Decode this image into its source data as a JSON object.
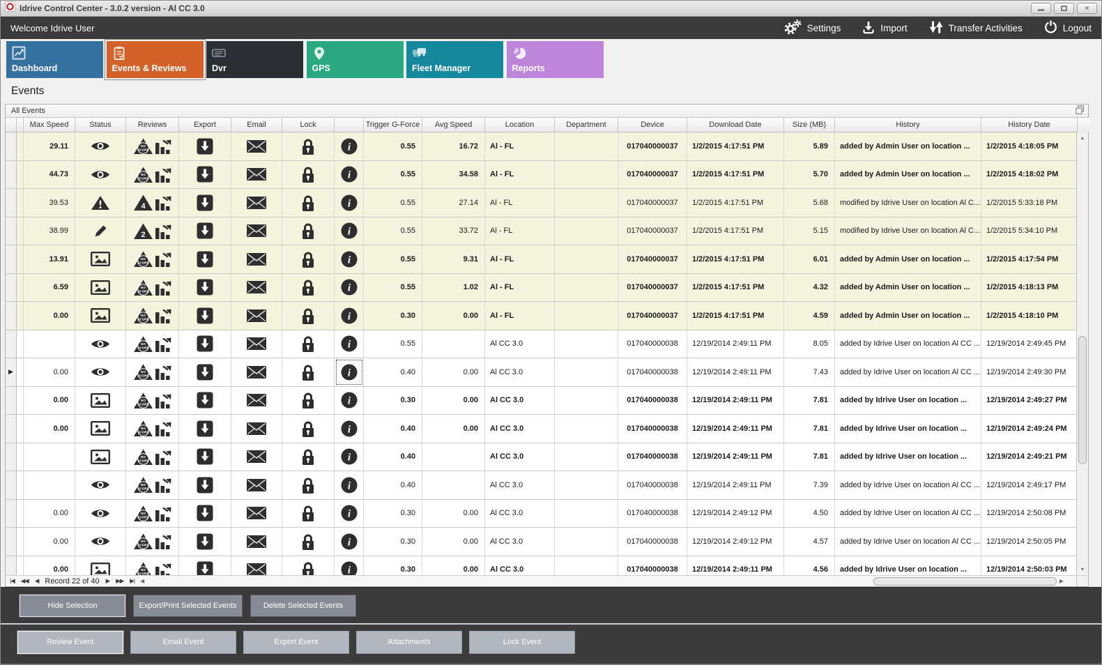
{
  "window": {
    "title": "Idrive Control Center - 3.0.2 version - Al CC 3.0"
  },
  "toolbar": {
    "welcome": "Welcome Idrive User",
    "actions": [
      {
        "label": "Settings",
        "icon": "gears-icon"
      },
      {
        "label": "Import",
        "icon": "import-icon"
      },
      {
        "label": "Transfer Activities",
        "icon": "transfer-icon"
      },
      {
        "label": "Logout",
        "icon": "power-icon"
      }
    ]
  },
  "tabs": [
    {
      "label": "Dashboard",
      "color": "#35719f",
      "selected": false,
      "icon": "line-chart-icon"
    },
    {
      "label": "Events & Reviews",
      "color": "#d2622a",
      "selected": true,
      "icon": "clipboard-icon"
    },
    {
      "label": "Dvr",
      "color": "#2b2e33",
      "selected": false,
      "icon": "dvr-icon"
    },
    {
      "label": "GPS",
      "color": "#2aa87f",
      "selected": false,
      "icon": "map-pin-icon"
    },
    {
      "label": "Fleet Manager",
      "color": "#16889e",
      "selected": false,
      "icon": "trucks-icon"
    },
    {
      "label": "Reports",
      "color": "#bd85da",
      "selected": false,
      "icon": "pie-chart-icon"
    }
  ],
  "page": {
    "title": "Events"
  },
  "panel": {
    "title": "All Events"
  },
  "table": {
    "columns": [
      "",
      "",
      "Max Speed",
      "Status",
      "Reviews",
      "Export",
      "Email",
      "Lock",
      "",
      "Trigger G-Force",
      "Avg Speed",
      "Location",
      "Department",
      "Device",
      "Download Date",
      "Size (MB)",
      "History",
      "History Date"
    ],
    "rows": [
      {
        "id_fragment": "2",
        "max_speed": "29.11",
        "status_icon": "eye",
        "review_badge": "NO SCORE",
        "g_force": "0.55",
        "avg_speed": "16.72",
        "location": "Al - FL",
        "department": "",
        "device": "017040000037",
        "download_date": "1/2/2015 4:17:51 PM",
        "size": "5.89",
        "history": "added by Admin User on location ...",
        "history_date": "1/2/2015 4:18:05 PM",
        "bold": true,
        "shaded": true,
        "current": false
      },
      {
        "id_fragment": "5",
        "max_speed": "44.73",
        "status_icon": "eye",
        "review_badge": "NO SCORE",
        "g_force": "0.55",
        "avg_speed": "34.58",
        "location": "Al - FL",
        "department": "",
        "device": "017040000037",
        "download_date": "1/2/2015 4:17:51 PM",
        "size": "5.70",
        "history": "added by Admin User on location ...",
        "history_date": "1/2/2015 4:18:02 PM",
        "bold": true,
        "shaded": true,
        "current": false
      },
      {
        "id_fragment": "4",
        "max_speed": "39.53",
        "status_icon": "warning",
        "review_badge": "4",
        "g_force": "0.55",
        "avg_speed": "27.14",
        "location": "Al - FL",
        "department": "",
        "device": "017040000037",
        "download_date": "1/2/2015 4:17:51 PM",
        "size": "5.68",
        "history": "modified by Idrive User on location Al C...",
        "history_date": "1/2/2015 5:33:18 PM",
        "bold": false,
        "shaded": true,
        "current": false
      },
      {
        "id_fragment": "9",
        "max_speed": "38.99",
        "status_icon": "pencil",
        "review_badge": "2",
        "g_force": "0.55",
        "avg_speed": "33.72",
        "location": "Al - FL",
        "department": "",
        "device": "017040000037",
        "download_date": "1/2/2015 4:17:51 PM",
        "size": "5.15",
        "history": "modified by Idrive User on location Al C...",
        "history_date": "1/2/2015 5:34:10 PM",
        "bold": false,
        "shaded": true,
        "current": false
      },
      {
        "id_fragment": "5",
        "max_speed": "13.91",
        "status_icon": "image",
        "review_badge": "NO SCORE",
        "g_force": "0.55",
        "avg_speed": "9.31",
        "location": "Al - FL",
        "department": "",
        "device": "017040000037",
        "download_date": "1/2/2015 4:17:51 PM",
        "size": "6.01",
        "history": "added by Admin User on location ...",
        "history_date": "1/2/2015 4:17:54 PM",
        "bold": true,
        "shaded": true,
        "current": false
      },
      {
        "id_fragment": "0",
        "max_speed": "6.59",
        "status_icon": "image",
        "review_badge": "NO SCORE",
        "g_force": "0.55",
        "avg_speed": "1.02",
        "location": "Al - FL",
        "department": "",
        "device": "017040000037",
        "download_date": "1/2/2015 4:17:51 PM",
        "size": "4.32",
        "history": "added by Admin User on location ...",
        "history_date": "1/2/2015 4:18:13 PM",
        "bold": true,
        "shaded": true,
        "current": false
      },
      {
        "id_fragment": "0",
        "max_speed": "0.00",
        "status_icon": "image",
        "review_badge": "NO SCORE",
        "g_force": "0.30",
        "avg_speed": "0.00",
        "location": "Al - FL",
        "department": "",
        "device": "017040000037",
        "download_date": "1/2/2015 4:17:51 PM",
        "size": "4.59",
        "history": "added by Admin User on location ...",
        "history_date": "1/2/2015 4:18:10 PM",
        "bold": true,
        "shaded": true,
        "current": false
      },
      {
        "id_fragment": "5",
        "max_speed": "",
        "status_icon": "eye",
        "review_badge": "NO SCORE",
        "g_force": "0.55",
        "avg_speed": "",
        "location": "Al CC 3.0",
        "department": "",
        "device": "017040000038",
        "download_date": "12/19/2014 2:49:11 PM",
        "size": "8.05",
        "history": "added by Idrive User on location Al CC ...",
        "history_date": "12/19/2014 2:49:45 PM",
        "bold": false,
        "shaded": false,
        "current": false
      },
      {
        "id_fragment": "7",
        "max_speed": "0.00",
        "status_icon": "eye",
        "review_badge": "NO SCORE",
        "g_force": "0.40",
        "avg_speed": "0.00",
        "location": "Al CC 3.0",
        "department": "",
        "device": "017040000038",
        "download_date": "12/19/2014 2:49:11 PM",
        "size": "7.43",
        "history": "added by Idrive User on location Al CC ...",
        "history_date": "12/19/2014 2:49:30 PM",
        "bold": false,
        "shaded": false,
        "current": true
      },
      {
        "id_fragment": "7",
        "max_speed": "0.00",
        "status_icon": "image",
        "review_badge": "NO SCORE",
        "g_force": "0.30",
        "avg_speed": "0.00",
        "location": "Al CC 3.0",
        "department": "",
        "device": "017040000038",
        "download_date": "12/19/2014 2:49:11 PM",
        "size": "7.81",
        "history": "added by Idrive User on location ...",
        "history_date": "12/19/2014 2:49:27 PM",
        "bold": true,
        "shaded": false,
        "current": false
      },
      {
        "id_fragment": "5",
        "max_speed": "0.00",
        "status_icon": "image",
        "review_badge": "NO SCORE",
        "g_force": "0.40",
        "avg_speed": "0.00",
        "location": "Al CC 3.0",
        "department": "",
        "device": "017040000038",
        "download_date": "12/19/2014 2:49:11 PM",
        "size": "7.81",
        "history": "added by Idrive User on location ...",
        "history_date": "12/19/2014 2:49:24 PM",
        "bold": true,
        "shaded": false,
        "current": false
      },
      {
        "id_fragment": "8",
        "max_speed": "",
        "status_icon": "image",
        "review_badge": "NO SCORE",
        "g_force": "0.40",
        "avg_speed": "",
        "location": "Al CC 3.0",
        "department": "",
        "device": "017040000038",
        "download_date": "12/19/2014 2:49:11 PM",
        "size": "7.81",
        "history": "added by Idrive User on location ...",
        "history_date": "12/19/2014 2:49:21 PM",
        "bold": true,
        "shaded": false,
        "current": false
      },
      {
        "id_fragment": "5",
        "max_speed": "",
        "status_icon": "eye",
        "review_badge": "NO SCORE",
        "g_force": "0.40",
        "avg_speed": "",
        "location": "Al CC 3.0",
        "department": "",
        "device": "017040000038",
        "download_date": "12/19/2014 2:49:11 PM",
        "size": "7.39",
        "history": "added by Idrive User on location Al CC ...",
        "history_date": "12/19/2014 2:49:17 PM",
        "bold": false,
        "shaded": false,
        "current": false
      },
      {
        "id_fragment": "5",
        "max_speed": "0.00",
        "status_icon": "eye",
        "review_badge": "NO SCORE",
        "g_force": "0.30",
        "avg_speed": "0.00",
        "location": "Al CC 3.0",
        "department": "",
        "device": "017040000038",
        "download_date": "12/19/2014 2:49:12 PM",
        "size": "4.50",
        "history": "added by Idrive User on location Al CC ...",
        "history_date": "12/19/2014 2:50:08 PM",
        "bold": false,
        "shaded": false,
        "current": false
      },
      {
        "id_fragment": "0",
        "max_speed": "0.00",
        "status_icon": "eye",
        "review_badge": "NO SCORE",
        "g_force": "0.30",
        "avg_speed": "0.00",
        "location": "Al CC 3.0",
        "department": "",
        "device": "017040000038",
        "download_date": "12/19/2014 2:49:12 PM",
        "size": "4.57",
        "history": "added by Idrive User on location Al CC ...",
        "history_date": "12/19/2014 2:50:05 PM",
        "bold": false,
        "shaded": false,
        "current": false
      },
      {
        "id_fragment": "5",
        "max_speed": "0.00",
        "status_icon": "image",
        "review_badge": "NO SCORE",
        "g_force": "0.30",
        "avg_speed": "0.00",
        "location": "Al CC 3.0",
        "department": "",
        "device": "017040000038",
        "download_date": "12/19/2014 2:49:11 PM",
        "size": "4.56",
        "history": "added by Idrive User on location ...",
        "history_date": "12/19/2014 2:50:03 PM",
        "bold": true,
        "shaded": false,
        "current": false
      }
    ]
  },
  "navigator": {
    "first": "|◀",
    "prev_page": "◀◀",
    "prev": "◀",
    "label": "Record 22 of 40",
    "next": "▶",
    "next_page": "▶▶",
    "last": "▶|",
    "hscroll_left": "◀",
    "hscroll_right": "▶",
    "vscroll_up": "▲",
    "vscroll_down": "▼"
  },
  "selection_bar": {
    "buttons": [
      {
        "label": "Hide Selection",
        "focused": true
      },
      {
        "label": "Export/Print Selected Events",
        "focused": false
      },
      {
        "label": "Delete Selected  Events",
        "focused": false
      }
    ]
  },
  "event_bar": {
    "buttons": [
      {
        "label": "Review Event",
        "focused": true
      },
      {
        "label": "Email Event",
        "focused": false
      },
      {
        "label": "Export Event",
        "focused": false
      },
      {
        "label": "Attachments",
        "focused": false
      },
      {
        "label": "Lock Event",
        "focused": false
      }
    ]
  },
  "colors": {
    "top_bar": "#3a3a3a",
    "shaded_row": "#f4f4de",
    "selected_tab": "#d2622a",
    "dark_button": "#878c96",
    "light_button": "#b2b6be"
  }
}
